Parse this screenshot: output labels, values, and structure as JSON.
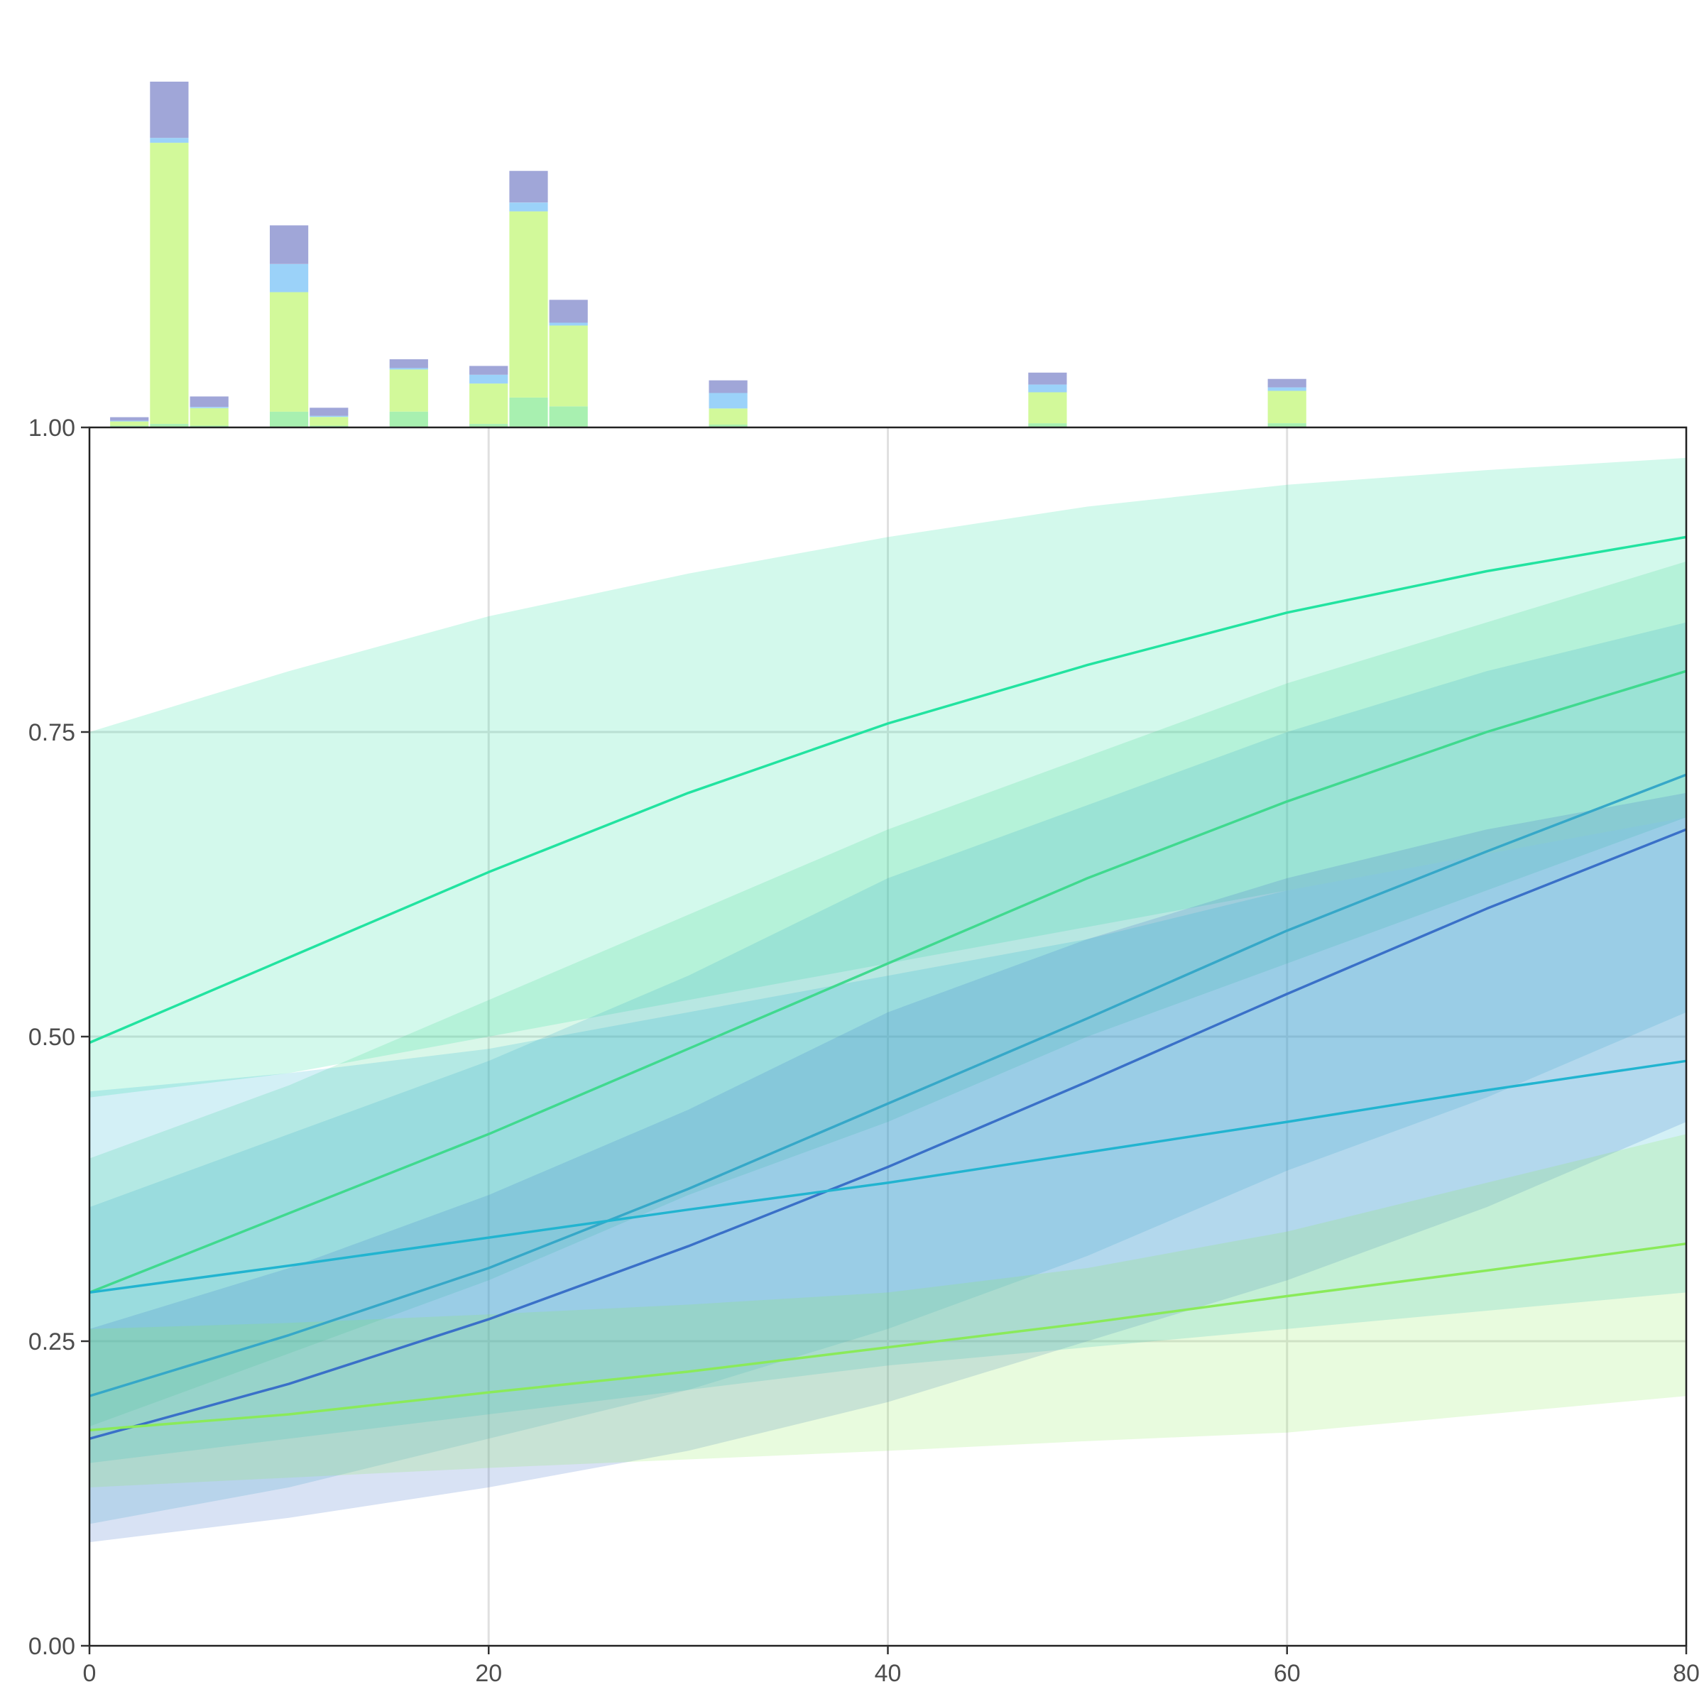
{
  "chart_data": [
    {
      "type": "line",
      "title": "",
      "xlabel": "",
      "ylabel": "",
      "xlim": [
        0,
        80
      ],
      "ylim": [
        0,
        1
      ],
      "grid": true,
      "legend": "none",
      "x_ticks": [
        0,
        20,
        40,
        60,
        80
      ],
      "x_tick_labels": [
        "0",
        "20",
        "40",
        "60",
        "80"
      ],
      "y_ticks": [
        0,
        0.25,
        0.5,
        0.75,
        1
      ],
      "y_tick_labels": [
        "0.00",
        "0.25",
        "0.50",
        "0.75",
        "1.00"
      ],
      "x": [
        0,
        10,
        20,
        30,
        40,
        50,
        60,
        70,
        80
      ],
      "series": [
        {
          "color": "#22e3a0",
          "values": [
            0.495,
            0.565,
            0.635,
            0.7,
            0.757,
            0.805,
            0.848,
            0.882,
            0.91
          ],
          "band_low": [
            0.45,
            0.47,
            0.5,
            0.53,
            0.56,
            0.59,
            0.62,
            0.65,
            0.68
          ],
          "band_high": [
            0.75,
            0.8,
            0.845,
            0.88,
            0.91,
            0.935,
            0.953,
            0.965,
            0.975
          ]
        },
        {
          "color": "#40d98f",
          "values": [
            0.29,
            0.355,
            0.42,
            0.49,
            0.56,
            0.63,
            0.693,
            0.75,
            0.8
          ],
          "band_low": [
            0.18,
            0.24,
            0.3,
            0.37,
            0.43,
            0.5,
            0.56,
            0.62,
            0.68
          ],
          "band_high": [
            0.4,
            0.46,
            0.53,
            0.6,
            0.67,
            0.73,
            0.79,
            0.84,
            0.89
          ]
        },
        {
          "color": "#36a8c8",
          "values": [
            0.205,
            0.255,
            0.31,
            0.375,
            0.445,
            0.515,
            0.587,
            0.652,
            0.715
          ],
          "band_low": [
            0.1,
            0.13,
            0.17,
            0.21,
            0.26,
            0.32,
            0.39,
            0.45,
            0.52
          ],
          "band_high": [
            0.36,
            0.42,
            0.48,
            0.55,
            0.63,
            0.69,
            0.75,
            0.8,
            0.84
          ]
        },
        {
          "color": "#3a70c8",
          "values": [
            0.17,
            0.215,
            0.268,
            0.328,
            0.393,
            0.463,
            0.535,
            0.605,
            0.67
          ],
          "band_low": [
            0.085,
            0.105,
            0.13,
            0.16,
            0.2,
            0.25,
            0.3,
            0.36,
            0.43
          ],
          "band_high": [
            0.26,
            0.31,
            0.37,
            0.44,
            0.52,
            0.58,
            0.63,
            0.67,
            0.7
          ]
        },
        {
          "color": "#22b4d0",
          "values": [
            0.29,
            0.312,
            0.335,
            0.358,
            0.38,
            0.405,
            0.43,
            0.456,
            0.48
          ],
          "band_low": [
            0.15,
            0.17,
            0.19,
            0.21,
            0.23,
            0.245,
            0.26,
            0.275,
            0.29
          ],
          "band_high": [
            0.455,
            0.47,
            0.49,
            0.52,
            0.55,
            0.58,
            0.62,
            0.65,
            0.68
          ]
        },
        {
          "color": "#8aea5a",
          "values": [
            0.177,
            0.19,
            0.208,
            0.225,
            0.245,
            0.265,
            0.287,
            0.308,
            0.33
          ],
          "band_low": [
            0.13,
            0.138,
            0.146,
            0.153,
            0.16,
            0.168,
            0.175,
            0.19,
            0.205
          ],
          "band_high": [
            0.26,
            0.265,
            0.272,
            0.28,
            0.29,
            0.31,
            0.34,
            0.38,
            0.42
          ]
        }
      ]
    },
    {
      "type": "bar",
      "stacked": true,
      "x_bins": [
        2,
        4,
        6,
        10,
        12,
        16,
        20,
        22,
        24,
        32,
        48,
        60
      ],
      "series": [
        {
          "color": "#a8f0b0",
          "values": [
            0.005,
            0.01,
            0.005,
            0.045,
            0.005,
            0.045,
            0.01,
            0.085,
            0.06,
            0.008,
            0.012,
            0.012
          ]
        },
        {
          "color": "#d2f99a",
          "values": [
            0.012,
            0.8,
            0.05,
            0.34,
            0.025,
            0.12,
            0.115,
            0.53,
            0.23,
            0.046,
            0.088,
            0.092
          ]
        },
        {
          "color": "#9bd2f9",
          "values": [
            0.002,
            0.014,
            0.003,
            0.08,
            0.003,
            0.004,
            0.025,
            0.025,
            0.008,
            0.044,
            0.022,
            0.01
          ]
        },
        {
          "color": "#a0a6d8",
          "values": [
            0.01,
            0.16,
            0.03,
            0.11,
            0.023,
            0.025,
            0.025,
            0.09,
            0.065,
            0.036,
            0.034,
            0.024
          ]
        }
      ]
    }
  ]
}
